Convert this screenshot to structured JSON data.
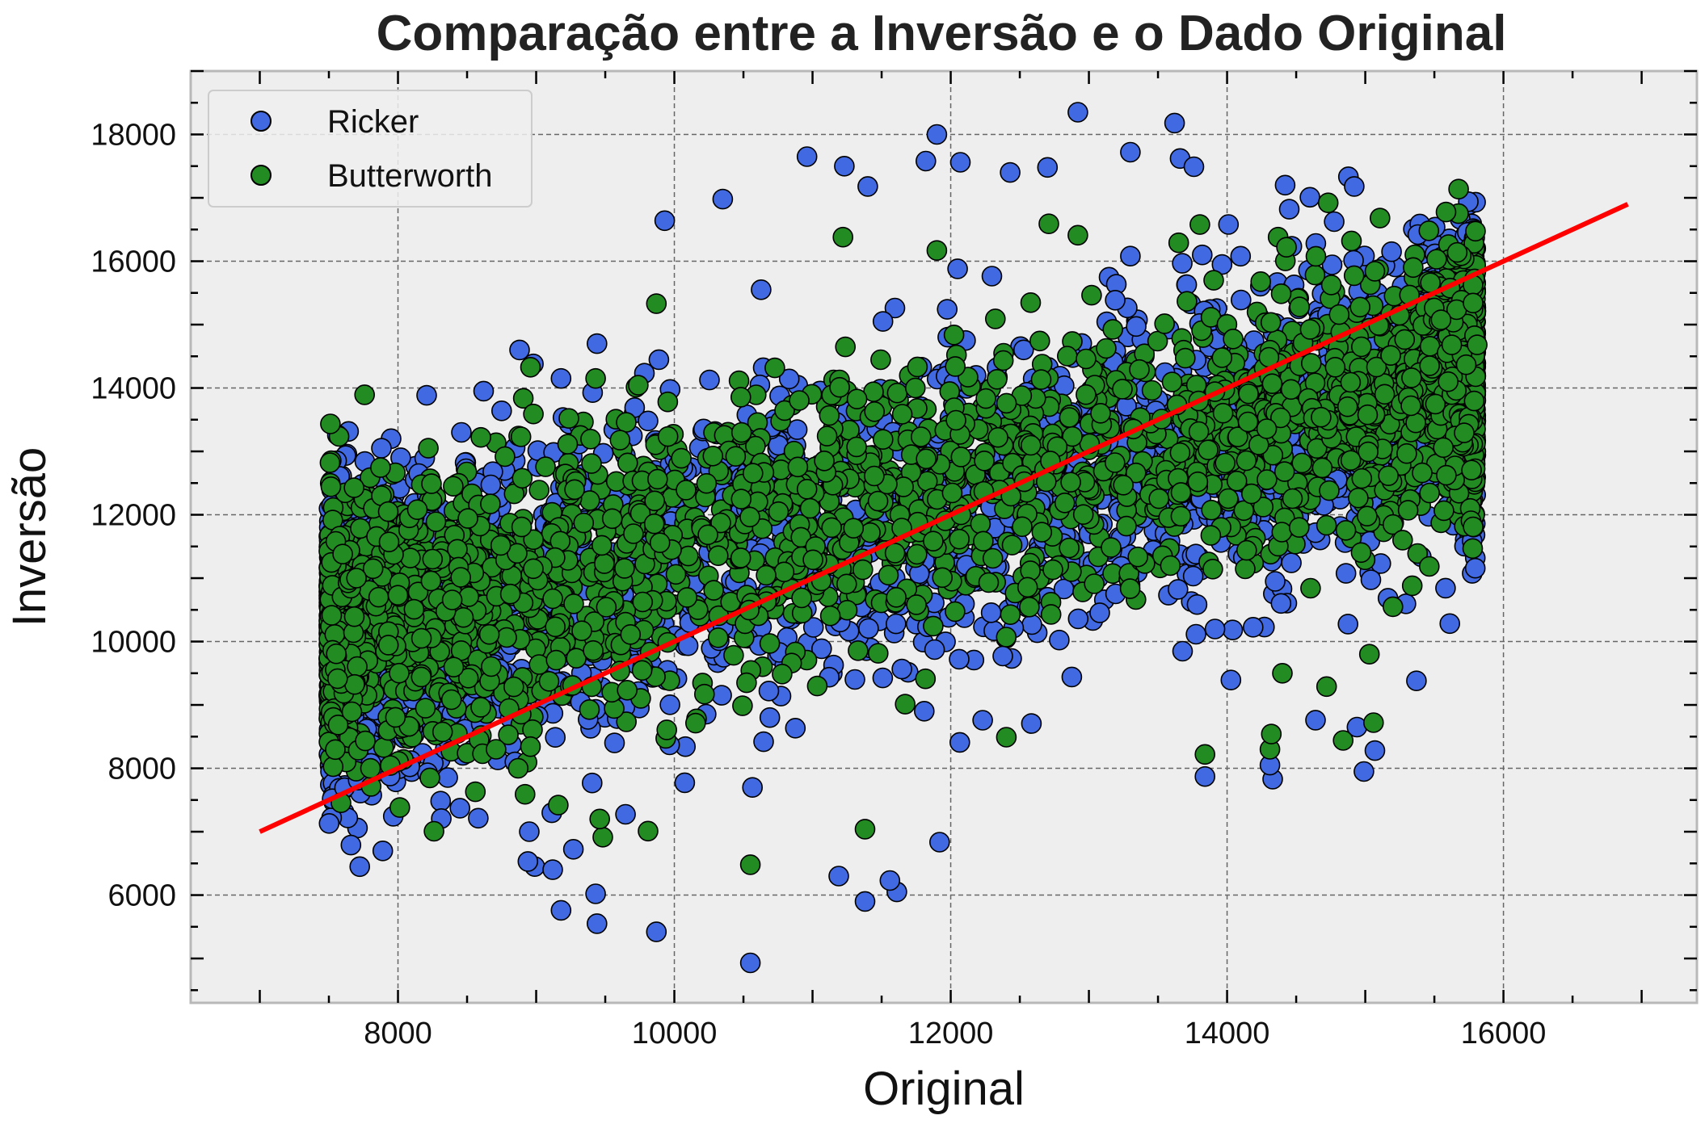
{
  "chart_data": {
    "type": "scatter",
    "title": "Comparação entre a Inversão e o Dado Original",
    "xlabel": "Original",
    "ylabel": "Inversão",
    "xlim": [
      6500,
      17400
    ],
    "ylim": [
      4300,
      19000
    ],
    "xticks": [
      8000,
      10000,
      12000,
      14000,
      16000
    ],
    "yticks": [
      6000,
      8000,
      10000,
      12000,
      14000,
      16000,
      18000
    ],
    "grid": true,
    "legend_position": "top-left",
    "background_color": "#eeeeee",
    "series": [
      {
        "name": "Ricker",
        "color": "#4169e1",
        "edge_color": "#000000",
        "distribution": {
          "x_range": [
            7500,
            15800
          ],
          "trend": "positive linear",
          "approx_center_line": [
            [
              8000,
              10200
            ],
            [
              16000,
              14200
            ]
          ],
          "approx_spread_sd": 1500,
          "point_count_approx": 15000
        },
        "visible_outliers": [
          [
            12920,
            18350
          ],
          [
            13620,
            18180
          ],
          [
            11900,
            18000
          ],
          [
            13300,
            17720
          ],
          [
            10960,
            17650
          ],
          [
            11230,
            17500
          ],
          [
            12700,
            17480
          ],
          [
            14420,
            17200
          ],
          [
            14920,
            17180
          ],
          [
            13660,
            17620
          ],
          [
            13760,
            17490
          ],
          [
            10350,
            16980
          ],
          [
            11820,
            17580
          ],
          [
            11400,
            17180
          ],
          [
            12070,
            17560
          ],
          [
            12430,
            17400
          ],
          [
            9930,
            16640
          ],
          [
            10550,
            4930
          ],
          [
            9870,
            5420
          ],
          [
            9440,
            5550
          ],
          [
            9180,
            5760
          ],
          [
            9430,
            6020
          ],
          [
            11380,
            5900
          ],
          [
            11610,
            6050
          ],
          [
            11560,
            6230
          ],
          [
            11190,
            6300
          ],
          [
            8990,
            6450
          ],
          [
            8940,
            6530
          ],
          [
            9120,
            6400
          ],
          [
            8950,
            7000
          ],
          [
            14330,
            7830
          ],
          [
            13840,
            7870
          ],
          [
            14990,
            7950
          ],
          [
            15370,
            9380
          ],
          [
            14640,
            8760
          ],
          [
            14940,
            8650
          ],
          [
            15070,
            8280
          ],
          [
            14310,
            8050
          ],
          [
            8880,
            14600
          ],
          [
            8980,
            14380
          ],
          [
            9180,
            14150
          ],
          [
            9440,
            14700
          ],
          [
            7950,
            13200
          ],
          [
            7880,
            13050
          ],
          [
            8020,
            12900
          ],
          [
            7760,
            12840
          ],
          [
            7740,
            12480
          ],
          [
            7520,
            12150
          ],
          [
            7670,
            12100
          ],
          [
            8150,
            12650
          ],
          [
            7810,
            12180
          ],
          [
            8240,
            11600
          ],
          [
            8030,
            10750
          ],
          [
            8300,
            9750
          ],
          [
            8620,
            13950
          ],
          [
            8750,
            13640
          ],
          [
            14010,
            16580
          ],
          [
            13820,
            16100
          ],
          [
            15190,
            16150
          ],
          [
            15380,
            16420
          ],
          [
            15660,
            16040
          ],
          [
            12050,
            15880
          ],
          [
            13300,
            16080
          ],
          [
            14450,
            16820
          ]
        ]
      },
      {
        "name": "Butterworth",
        "color": "#228b22",
        "edge_color": "#000000",
        "distribution": {
          "x_range": [
            7500,
            15800
          ],
          "trend": "positive linear",
          "approx_center_line": [
            [
              8000,
              10400
            ],
            [
              16000,
              14300
            ]
          ],
          "approx_spread_sd": 1250,
          "point_count_approx": 15000
        },
        "visible_outliers": [
          [
            11220,
            16380
          ],
          [
            11900,
            16170
          ],
          [
            12710,
            16590
          ],
          [
            12920,
            16410
          ],
          [
            13650,
            16290
          ],
          [
            14900,
            16320
          ],
          [
            14430,
            16220
          ],
          [
            9870,
            15330
          ],
          [
            10550,
            6480
          ],
          [
            9810,
            7010
          ],
          [
            11380,
            7040
          ],
          [
            9460,
            7200
          ],
          [
            9160,
            7420
          ],
          [
            13840,
            8220
          ],
          [
            14310,
            8300
          ],
          [
            14320,
            8540
          ],
          [
            14840,
            8440
          ],
          [
            15060,
            8720
          ],
          [
            14400,
            9500
          ],
          [
            14720,
            9290
          ],
          [
            15030,
            9800
          ],
          [
            15200,
            10550
          ],
          [
            15270,
            11600
          ],
          [
            15340,
            10880
          ],
          [
            7550,
            11580
          ],
          [
            7600,
            11380
          ],
          [
            7820,
            11150
          ],
          [
            7700,
            11000
          ],
          [
            7860,
            10700
          ],
          [
            8000,
            10730
          ],
          [
            8170,
            10050
          ],
          [
            8400,
            12450
          ],
          [
            7880,
            12300
          ],
          [
            7930,
            12050
          ],
          [
            8140,
            12080
          ],
          [
            8250,
            11300
          ],
          [
            15780,
            15340
          ],
          [
            15810,
            14680
          ],
          [
            15600,
            14100
          ],
          [
            8600,
            13220
          ],
          [
            8890,
            13230
          ],
          [
            8980,
            13590
          ],
          [
            9430,
            14150
          ],
          [
            8710,
            8300
          ],
          [
            8920,
            7590
          ],
          [
            8870,
            8000
          ]
        ]
      },
      {
        "name": "",
        "type": "line",
        "color": "#ff0000",
        "x": [
          7000,
          16900
        ],
        "y": [
          7000,
          16900
        ]
      }
    ]
  }
}
